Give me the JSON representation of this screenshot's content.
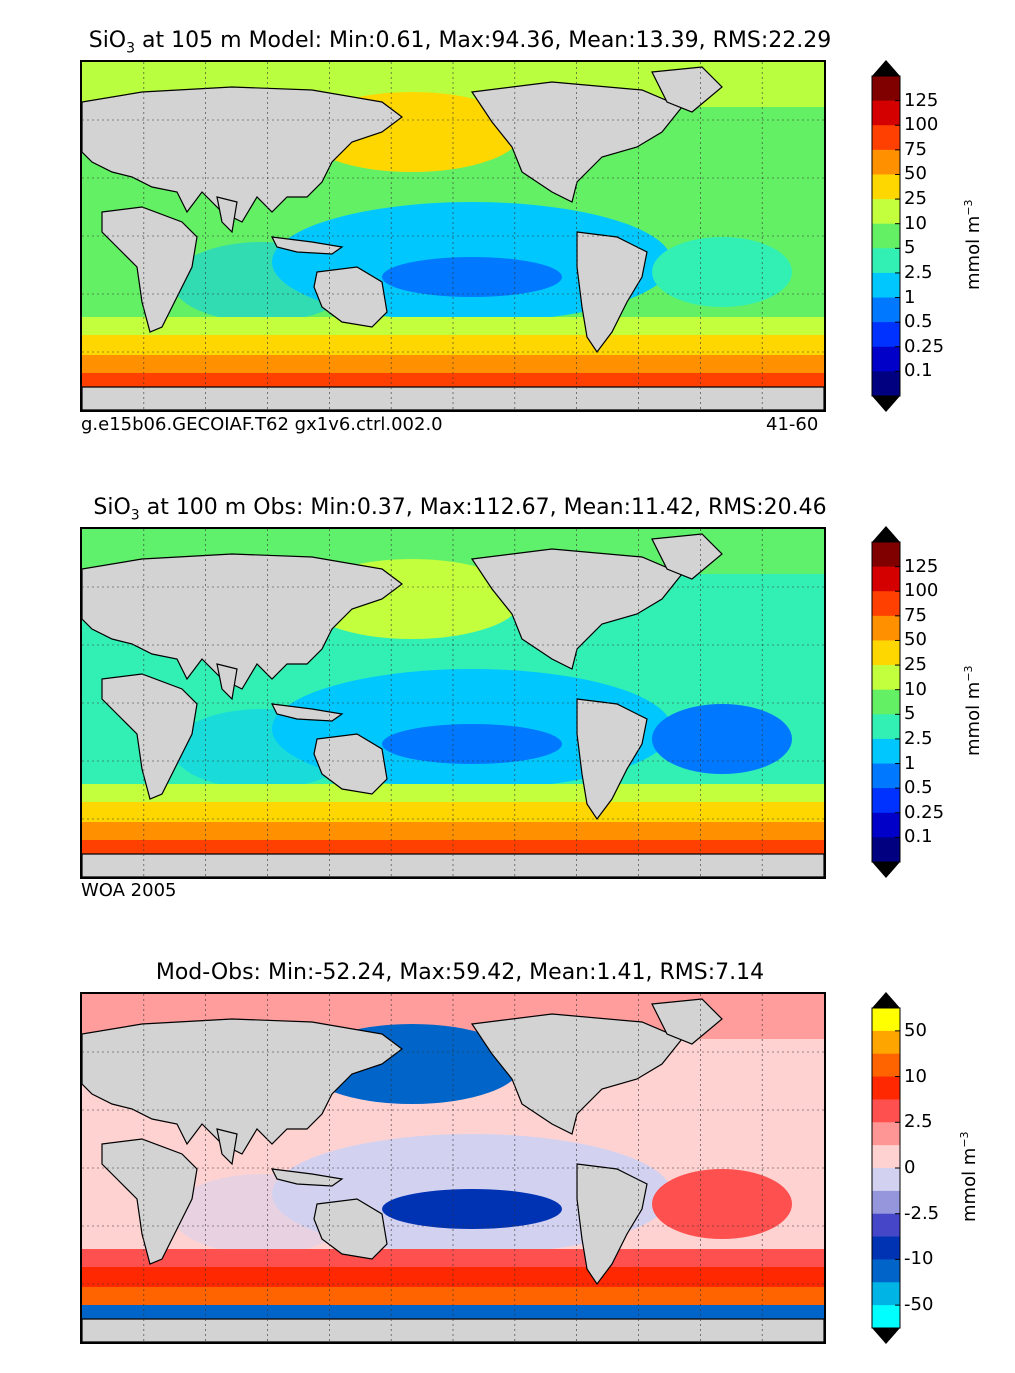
{
  "panels": [
    {
      "title_var": "SiO",
      "title_sub": "3",
      "title_rest": " at 105 m Model: Min:0.61, Max:94.36, Mean:13.39, RMS:22.29",
      "caption_left": "g.e15b06.GECOIAF.T62 gx1v6.ctrl.002.0",
      "caption_right": "41-60",
      "units": "mmol m",
      "units_sup": "−3",
      "colorbar": {
        "labels": [
          "125",
          "100",
          "75",
          "50",
          "25",
          "10",
          "5",
          "2.5",
          "1",
          "0.5",
          "0.25",
          "0.1"
        ],
        "colors": [
          "#800000",
          "#d40000",
          "#ff4000",
          "#ff9000",
          "#ffd700",
          "#c3ff3c",
          "#64f064",
          "#32f0b4",
          "#00c8ff",
          "#0078ff",
          "#0032ff",
          "#0000c8",
          "#000080"
        ]
      },
      "map_colors": {
        "ocean_base": "#64f064",
        "tropics": "#00c8ff",
        "tropic_core": "#0078ff",
        "north_pacific": "#ffd700",
        "subtropic_band": "#c3ff3c",
        "south_band_1": "#c3ff3c",
        "south_band_2": "#ffd700",
        "south_band_3": "#ff9000",
        "south_band_4": "#ff4000",
        "atlantic_tropic": "#32f0b4"
      }
    },
    {
      "title_var": "SiO",
      "title_sub": "3",
      "title_rest": " at 100 m Obs: Min:0.37, Max:112.67, Mean:11.42, RMS:20.46",
      "caption_left": "WOA 2005",
      "caption_right": "",
      "units": "mmol m",
      "units_sup": "−3",
      "colorbar": {
        "labels": [
          "125",
          "100",
          "75",
          "50",
          "25",
          "10",
          "5",
          "2.5",
          "1",
          "0.5",
          "0.25",
          "0.1"
        ],
        "colors": [
          "#800000",
          "#d40000",
          "#ff4000",
          "#ff9000",
          "#ffd700",
          "#c3ff3c",
          "#64f064",
          "#32f0b4",
          "#00c8ff",
          "#0078ff",
          "#0032ff",
          "#0000c8",
          "#000080"
        ]
      },
      "map_colors": {
        "ocean_base": "#32f0b4",
        "tropics": "#00c8ff",
        "tropic_core": "#0078ff",
        "north_pacific": "#c3ff3c",
        "subtropic_band": "#64f064",
        "south_band_1": "#c3ff3c",
        "south_band_2": "#ffd700",
        "south_band_3": "#ff9000",
        "south_band_4": "#ff4000",
        "atlantic_tropic": "#0078ff"
      }
    },
    {
      "title_var": "Mod-Obs: Min:-52.24, Max:59.42, Mean:1.41, RMS:7.14",
      "title_sub": "",
      "title_rest": "",
      "caption_left": "",
      "caption_right": "",
      "units": "mmol m",
      "units_sup": "−3",
      "colorbar": {
        "labels": [
          "50",
          "",
          "10",
          "",
          "2.5",
          "",
          "0",
          "",
          "-2.5",
          "",
          "-10",
          "",
          "-50"
        ],
        "colors": [
          "#ffff00",
          "#ffa500",
          "#ff6400",
          "#ff2800",
          "#ff5050",
          "#ff9696",
          "#ffd2d2",
          "#d2d2f0",
          "#9696dc",
          "#4646c8",
          "#0032b4",
          "#0064c8",
          "#00b4e6",
          "#00ffff"
        ]
      },
      "map_colors": {
        "ocean_base": "#ffd2d2",
        "tropics": "#d2d2f0",
        "tropic_core": "#0032b4",
        "north_pacific": "#0064c8",
        "subtropic_band": "#ff9696",
        "south_band_1": "#ff5050",
        "south_band_2": "#ff2800",
        "south_band_3": "#ff6400",
        "south_band_4": "#0064c8",
        "atlantic_tropic": "#ff5050"
      }
    }
  ],
  "land_color": "#d3d3d3"
}
